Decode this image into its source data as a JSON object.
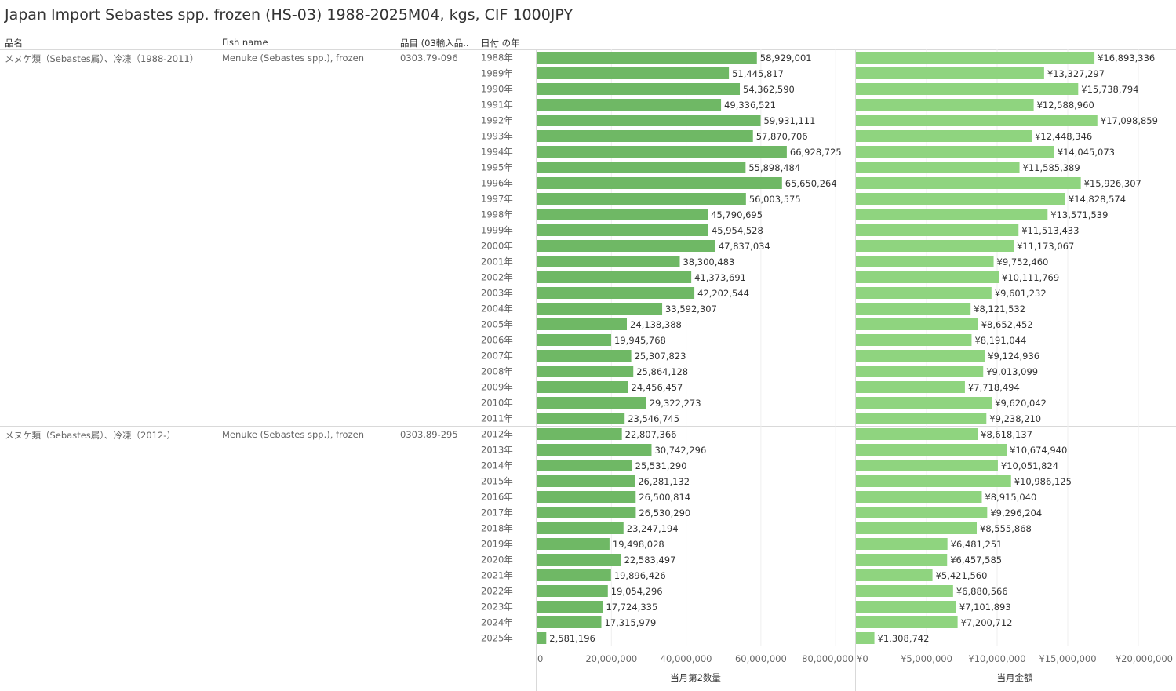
{
  "title": "Japan Import Sebastes spp. frozen (HS-03) 1988-2025M04, kgs, CIF 1000JPY",
  "columns": {
    "item_name": "品名",
    "fish_name": "Fish name",
    "hs_code": "品目 (03輸入品..",
    "year": "日付 の年"
  },
  "groups": [
    {
      "item_name": "メヌケ類（Sebastes属）、冷凍（1988-2011）",
      "fish_name": "Menuke (Sebastes spp.), frozen",
      "hs_code": "0303.79-096"
    },
    {
      "item_name": "メヌケ類（Sebastes属）、冷凍（2012-）",
      "fish_name": "Menuke (Sebastes spp.), frozen",
      "hs_code": "0303.89-295"
    }
  ],
  "colors": {
    "quantity_bar": "#6fb865",
    "value_bar": "#8fd47f",
    "grid": "#d9d9d9"
  },
  "chart_data": {
    "type": "bar",
    "orientation": "horizontal",
    "categories": [
      "1988年",
      "1989年",
      "1990年",
      "1991年",
      "1992年",
      "1993年",
      "1994年",
      "1995年",
      "1996年",
      "1997年",
      "1998年",
      "1999年",
      "2000年",
      "2001年",
      "2002年",
      "2003年",
      "2004年",
      "2005年",
      "2006年",
      "2007年",
      "2008年",
      "2009年",
      "2010年",
      "2011年",
      "2012年",
      "2013年",
      "2014年",
      "2015年",
      "2016年",
      "2017年",
      "2018年",
      "2019年",
      "2020年",
      "2021年",
      "2022年",
      "2023年",
      "2024年",
      "2025年"
    ],
    "group_sizes": [
      24,
      14
    ],
    "panels": [
      {
        "axis_title": "当月第2数量",
        "xlim": [
          0,
          85000000
        ],
        "ticks": [
          0,
          20000000,
          40000000,
          60000000,
          80000000
        ],
        "tick_labels": [
          "0",
          "20,000,000",
          "40,000,000",
          "60,000,000",
          "80,000,000"
        ],
        "values": [
          58929001,
          51445817,
          54362590,
          49336521,
          59931111,
          57870706,
          66928725,
          55898484,
          65650264,
          56003575,
          45790695,
          45954528,
          47837034,
          38300483,
          41373691,
          42202544,
          33592307,
          24138388,
          19945768,
          25307823,
          25864128,
          24456457,
          29322273,
          23546745,
          22807366,
          30742296,
          25531290,
          26281132,
          26500814,
          26530290,
          23247194,
          19498028,
          22583497,
          19896426,
          19054296,
          17724335,
          17315979,
          2581196
        ],
        "labels": [
          "58,929,001",
          "51,445,817",
          "54,362,590",
          "49,336,521",
          "59,931,111",
          "57,870,706",
          "66,928,725",
          "55,898,484",
          "65,650,264",
          "56,003,575",
          "45,790,695",
          "45,954,528",
          "47,837,034",
          "38,300,483",
          "41,373,691",
          "42,202,544",
          "33,592,307",
          "24,138,388",
          "19,945,768",
          "25,307,823",
          "25,864,128",
          "24,456,457",
          "29,322,273",
          "23,546,745",
          "22,807,366",
          "30,742,296",
          "25,531,290",
          "26,281,132",
          "26,500,814",
          "26,530,290",
          "23,247,194",
          "19,498,028",
          "22,583,497",
          "19,896,426",
          "19,054,296",
          "17,724,335",
          "17,315,979",
          "2,581,196"
        ]
      },
      {
        "axis_title": "当月金額",
        "xlim": [
          0,
          22500000
        ],
        "ticks": [
          0,
          5000000,
          10000000,
          15000000,
          20000000
        ],
        "tick_labels": [
          "¥0",
          "¥5,000,000",
          "¥10,000,000",
          "¥15,000,000",
          "¥20,000,000"
        ],
        "values": [
          16893336,
          13327297,
          15738794,
          12588960,
          17098859,
          12448346,
          14045073,
          11585389,
          15926307,
          14828574,
          13571539,
          11513433,
          11173067,
          9752460,
          10111769,
          9601232,
          8121532,
          8652452,
          8191044,
          9124936,
          9013099,
          7718494,
          9620042,
          9238210,
          8618137,
          10674940,
          10051824,
          10986125,
          8915040,
          9296204,
          8555868,
          6481251,
          6457585,
          5421560,
          6880566,
          7101893,
          7200712,
          1308742
        ],
        "labels": [
          "¥16,893,336",
          "¥13,327,297",
          "¥15,738,794",
          "¥12,588,960",
          "¥17,098,859",
          "¥12,448,346",
          "¥14,045,073",
          "¥11,585,389",
          "¥15,926,307",
          "¥14,828,574",
          "¥13,571,539",
          "¥11,513,433",
          "¥11,173,067",
          "¥9,752,460",
          "¥10,111,769",
          "¥9,601,232",
          "¥8,121,532",
          "¥8,652,452",
          "¥8,191,044",
          "¥9,124,936",
          "¥9,013,099",
          "¥7,718,494",
          "¥9,620,042",
          "¥9,238,210",
          "¥8,618,137",
          "¥10,674,940",
          "¥10,051,824",
          "¥10,986,125",
          "¥8,915,040",
          "¥9,296,204",
          "¥8,555,868",
          "¥6,481,251",
          "¥6,457,585",
          "¥5,421,560",
          "¥6,880,566",
          "¥7,101,893",
          "¥7,200,712",
          "¥1,308,742"
        ]
      }
    ]
  }
}
